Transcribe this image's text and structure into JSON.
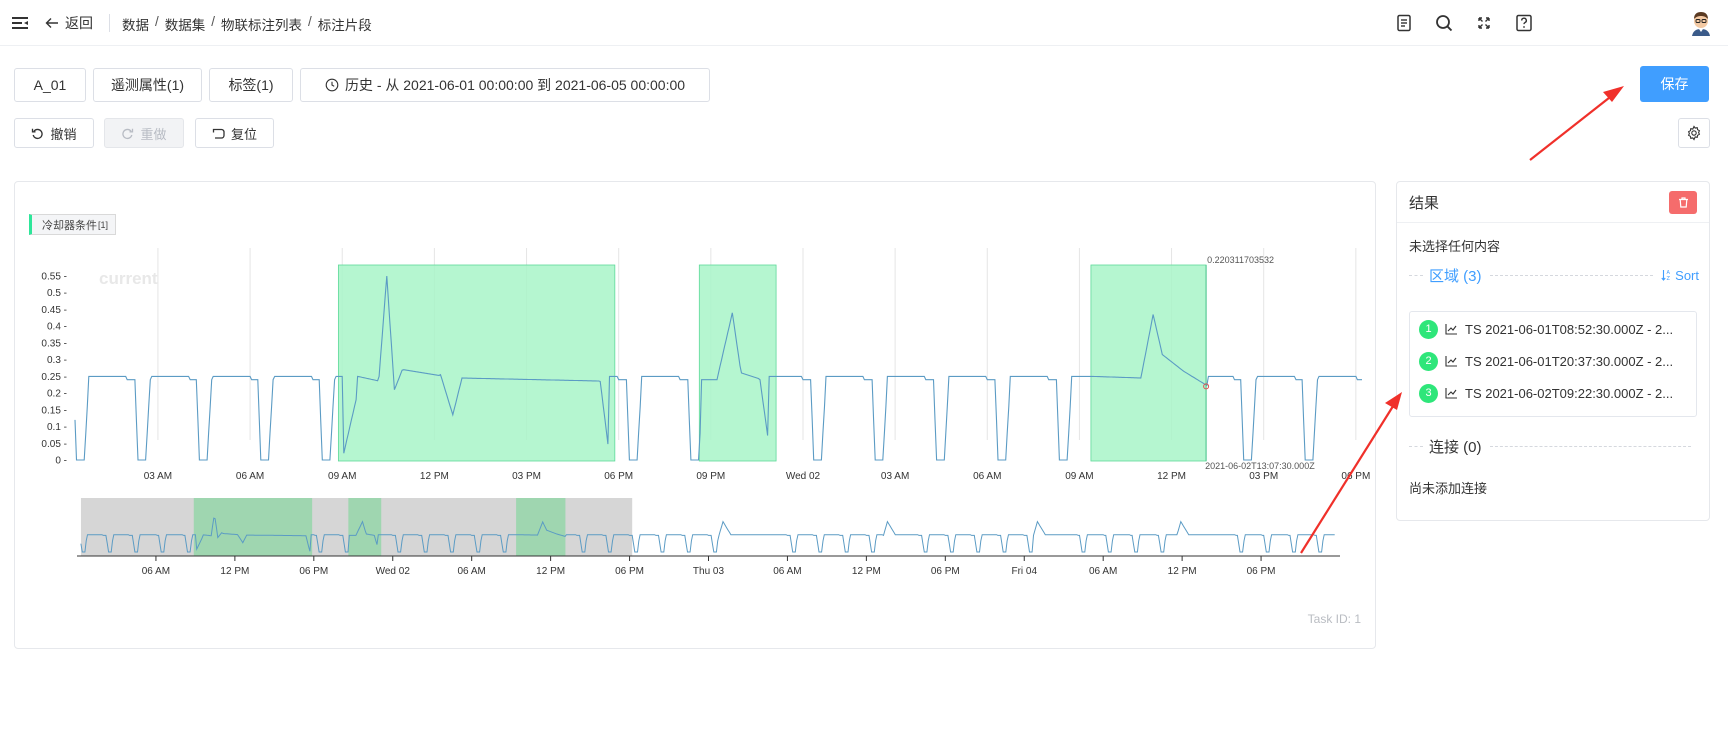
{
  "header": {
    "back_label": "返回",
    "breadcrumb": [
      "数据",
      "数据集",
      "物联标注列表",
      "标注片段"
    ]
  },
  "tabs": {
    "device": "A_01",
    "telemetry": "遥测属性(1)",
    "labels": "标签(1)",
    "time_range": "历史 - 从 2021-06-01 00:00:00 到 2021-06-05 00:00:00"
  },
  "toolbar": {
    "undo": "撤销",
    "redo": "重做",
    "reset": "复位",
    "save": "保存"
  },
  "chart": {
    "legend_label": "冷却器条件",
    "legend_count": "[1]",
    "watermark": "current",
    "hover_value": "0.220311703532",
    "hover_time": "2021-06-02T13:07:30.000Z",
    "task_id": "Task ID: 1"
  },
  "chart_data": {
    "type": "line",
    "series": [
      {
        "name": "current",
        "color": "#5b9bc4"
      }
    ],
    "yticks": [
      "0.55",
      "0.5",
      "0.45",
      "0.4",
      "0.35",
      "0.3",
      "0.25",
      "0.2",
      "0.15",
      "0.1",
      "0.05",
      "0"
    ],
    "ylim": [
      0,
      0.56
    ],
    "xticks_main": [
      "03 AM",
      "06 AM",
      "09 AM",
      "12 PM",
      "03 PM",
      "06 PM",
      "09 PM",
      "Wed 02",
      "03 AM",
      "06 AM",
      "09 AM",
      "12 PM",
      "03 PM",
      "06 PM"
    ],
    "xticks_overview": [
      "06 AM",
      "12 PM",
      "06 PM",
      "Wed 02",
      "06 AM",
      "12 PM",
      "06 PM",
      "Thu 03",
      "06 AM",
      "12 PM",
      "06 PM",
      "Fri 04",
      "06 AM",
      "12 PM",
      "06 PM"
    ],
    "regions": [
      {
        "id": 1,
        "start_hour": 8.875,
        "end_hour": 17.875
      },
      {
        "id": 2,
        "start_hour": 20.625,
        "end_hour": 23.125
      },
      {
        "id": 3,
        "start_hour": 33.375,
        "end_hour": 37.125
      }
    ],
    "colors": {
      "region": "#a8f5c8",
      "region_border": "#5fd99a",
      "line": "#5b9bc4"
    }
  },
  "result": {
    "title": "结果",
    "none_selected": "未选择任何内容",
    "regions_label": "区域 (3)",
    "sort_label": "Sort",
    "regions": [
      {
        "num": "1",
        "label": "TS 2021-06-01T08:52:30.000Z - 2..."
      },
      {
        "num": "2",
        "label": "TS 2021-06-01T20:37:30.000Z - 2..."
      },
      {
        "num": "3",
        "label": "TS 2021-06-02T09:22:30.000Z - 2..."
      }
    ],
    "connections_label": "连接 (0)",
    "no_connections": "尚未添加连接"
  }
}
